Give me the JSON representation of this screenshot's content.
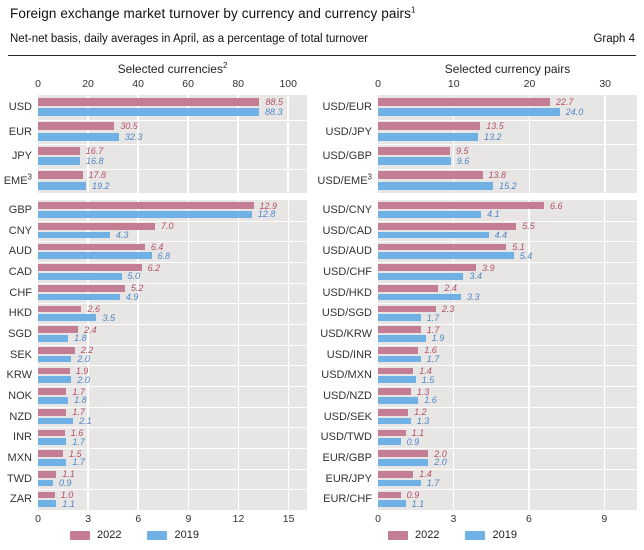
{
  "header": {
    "title": "Foreign exchange market turnover by currency and currency pairs",
    "title_superscript": "1",
    "subtitle": "Net-net basis, daily averages in April, as a percentage of total turnover",
    "graph_label": "Graph 4"
  },
  "colors": {
    "bar_2022": "#c47e93",
    "bar_2019": "#6fb0e5",
    "value_2022": "#b44f66",
    "value_2019": "#4e86c6",
    "panel_background": "#e7e6e4",
    "gridline": "#ffffff"
  },
  "legend": {
    "items": [
      {
        "label": "2022",
        "color": "#c47e93"
      },
      {
        "label": "2019",
        "color": "#6fb0e5"
      }
    ]
  },
  "chart_data": [
    {
      "id": "p1",
      "type": "bar",
      "orientation": "horizontal",
      "title": "Selected currencies",
      "title_superscript": "2",
      "axis_position": "top",
      "grid": true,
      "ticks": [
        0,
        20,
        40,
        60,
        80,
        100
      ],
      "xlim": [
        0,
        107.5
      ],
      "categories": [
        {
          "label": "USD"
        },
        {
          "label": "EUR"
        },
        {
          "label": "JPY"
        },
        {
          "label": "EME",
          "sup": "3"
        }
      ],
      "series": [
        {
          "name": "2022",
          "values": [
            88.5,
            30.5,
            16.7,
            17.8
          ]
        },
        {
          "name": "2019",
          "values": [
            88.3,
            32.3,
            16.8,
            19.2
          ]
        }
      ]
    },
    {
      "id": "p2",
      "type": "bar",
      "orientation": "horizontal",
      "title": "Selected currency pairs",
      "title_superscript": "",
      "axis_position": "top",
      "grid": true,
      "ticks": [
        0,
        10,
        20,
        30
      ],
      "xlim": [
        0,
        34.2
      ],
      "categories": [
        {
          "label": "USD/EUR"
        },
        {
          "label": "USD/JPY"
        },
        {
          "label": "USD/GBP"
        },
        {
          "label": "USD/EME",
          "sup": "3"
        }
      ],
      "series": [
        {
          "name": "2022",
          "values": [
            22.7,
            13.5,
            9.5,
            13.8
          ]
        },
        {
          "name": "2019",
          "values": [
            24.0,
            13.2,
            9.6,
            15.2
          ]
        }
      ]
    },
    {
      "id": "p3",
      "type": "bar",
      "orientation": "horizontal",
      "title": "",
      "title_superscript": "",
      "axis_position": "bottom",
      "grid": true,
      "ticks": [
        0,
        3,
        6,
        9,
        12,
        15
      ],
      "xlim": [
        0,
        16.1
      ],
      "categories": [
        {
          "label": "GBP"
        },
        {
          "label": "CNY"
        },
        {
          "label": "AUD"
        },
        {
          "label": "CAD"
        },
        {
          "label": "CHF"
        },
        {
          "label": "HKD"
        },
        {
          "label": "SGD"
        },
        {
          "label": "SEK"
        },
        {
          "label": "KRW"
        },
        {
          "label": "NOK"
        },
        {
          "label": "NZD"
        },
        {
          "label": "INR"
        },
        {
          "label": "MXN"
        },
        {
          "label": "TWD"
        },
        {
          "label": "ZAR"
        }
      ],
      "series": [
        {
          "name": "2022",
          "values": [
            12.9,
            7.0,
            6.4,
            6.2,
            5.2,
            2.6,
            2.4,
            2.2,
            1.9,
            1.7,
            1.7,
            1.6,
            1.5,
            1.1,
            1.0
          ]
        },
        {
          "name": "2019",
          "values": [
            12.8,
            4.3,
            6.8,
            5.0,
            4.9,
            3.5,
            1.8,
            2.0,
            2.0,
            1.8,
            2.1,
            1.7,
            1.7,
            0.9,
            1.1
          ]
        }
      ]
    },
    {
      "id": "p4",
      "type": "bar",
      "orientation": "horizontal",
      "title": "",
      "title_superscript": "",
      "axis_position": "bottom",
      "grid": true,
      "ticks": [
        0,
        3,
        6,
        9
      ],
      "xlim": [
        0,
        10.3
      ],
      "categories": [
        {
          "label": "USD/CNY"
        },
        {
          "label": "USD/CAD"
        },
        {
          "label": "USD/AUD"
        },
        {
          "label": "USD/CHF"
        },
        {
          "label": "USD/HKD"
        },
        {
          "label": "USD/SGD"
        },
        {
          "label": "USD/KRW"
        },
        {
          "label": "USD/INR"
        },
        {
          "label": "USD/MXN"
        },
        {
          "label": "USD/NZD"
        },
        {
          "label": "USD/SEK"
        },
        {
          "label": "USD/TWD"
        },
        {
          "label": "EUR/GBP"
        },
        {
          "label": "EUR/JPY"
        },
        {
          "label": "EUR/CHF"
        }
      ],
      "series": [
        {
          "name": "2022",
          "values": [
            6.6,
            5.5,
            5.1,
            3.9,
            2.4,
            2.3,
            1.7,
            1.6,
            1.4,
            1.3,
            1.2,
            1.1,
            2.0,
            1.4,
            0.9
          ]
        },
        {
          "name": "2019",
          "values": [
            4.1,
            4.4,
            5.4,
            3.4,
            3.3,
            1.7,
            1.9,
            1.7,
            1.5,
            1.6,
            1.3,
            0.9,
            2.0,
            1.7,
            1.1
          ]
        }
      ]
    }
  ]
}
